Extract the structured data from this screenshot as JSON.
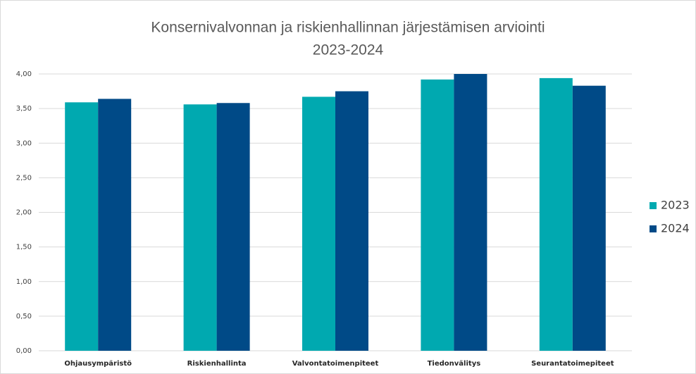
{
  "chart_data": {
    "type": "bar",
    "title": [
      "Konsernivalvonnan ja riskienhallinnan järjestämisen arviointi",
      "2023-2024"
    ],
    "categories": [
      "Ohjausympäristö",
      "Riskienhallinta",
      "Valvontatoimenpiteet",
      "Tiedonvälitys",
      "Seurantatoimepiteet"
    ],
    "series": [
      {
        "name": "2023",
        "color": "#00a9b0",
        "values": [
          3.59,
          3.56,
          3.67,
          3.92,
          3.94
        ]
      },
      {
        "name": "2024",
        "color": "#004a87",
        "values": [
          3.64,
          3.58,
          3.75,
          4.0,
          3.83
        ]
      }
    ],
    "ylim": [
      0,
      4
    ],
    "yticks": [
      {
        "value": 0,
        "label": "0,00"
      },
      {
        "value": 0.5,
        "label": "0,50"
      },
      {
        "value": 1,
        "label": "1,00"
      },
      {
        "value": 1.5,
        "label": "1,50"
      },
      {
        "value": 2,
        "label": "2,00"
      },
      {
        "value": 2.5,
        "label": "2,50"
      },
      {
        "value": 3,
        "label": "3,00"
      },
      {
        "value": 3.5,
        "label": "3,50"
      },
      {
        "value": 4,
        "label": "4,00"
      }
    ],
    "grid": true,
    "legend": "right"
  }
}
